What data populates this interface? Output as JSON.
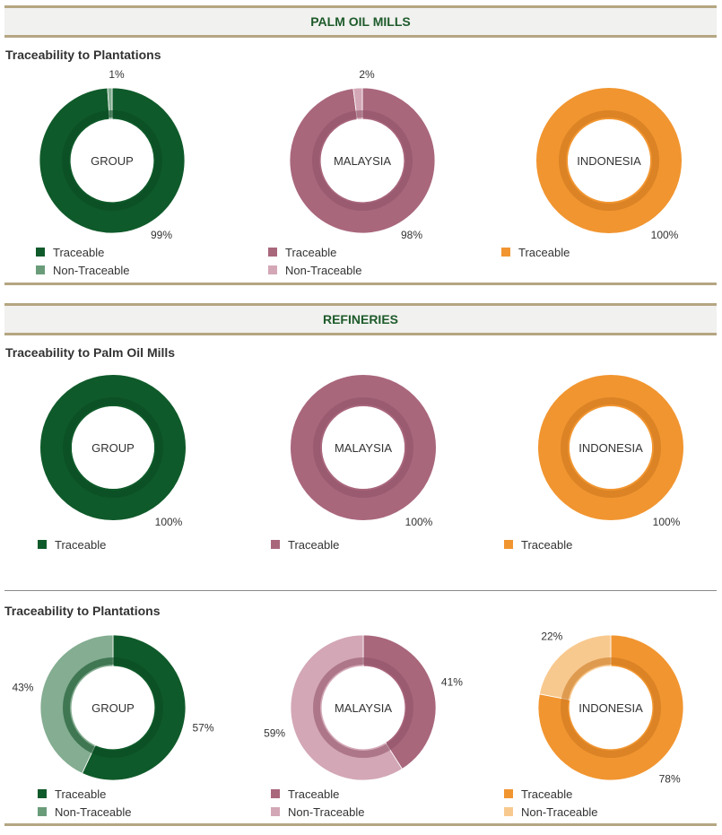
{
  "sections": [
    {
      "title": "PALM OIL MILLS"
    },
    {
      "title": "REFINERIES"
    }
  ],
  "subtitles": [
    "Traceability to Plantations",
    "Traceability to Palm Oil Mills",
    "Traceability to Plantations"
  ],
  "legend_labels": {
    "traceable": "Traceable",
    "non_traceable": "Non-Traceable"
  },
  "colors": {
    "group": {
      "traceable": "#0f5a2a",
      "non_traceable": "#84ad91",
      "ring": "#0a4a20"
    },
    "malaysia": {
      "traceable": "#a9677c",
      "non_traceable": "#d3a7b6",
      "ring": "#8e5065"
    },
    "indonesia": {
      "traceable": "#f19530",
      "non_traceable": "#f8c98f",
      "ring": "#c8751d"
    }
  },
  "chart_data": [
    {
      "type": "pie",
      "section": "PALM OIL MILLS",
      "title": "Traceability to Plantations",
      "charts": [
        {
          "center_label": "GROUP",
          "slices": [
            {
              "label": "Traceable",
              "value": 99,
              "text": "99%"
            },
            {
              "label": "Non-Traceable",
              "value": 1,
              "text": "1%"
            }
          ]
        },
        {
          "center_label": "MALAYSIA",
          "slices": [
            {
              "label": "Traceable",
              "value": 98,
              "text": "98%"
            },
            {
              "label": "Non-Traceable",
              "value": 2,
              "text": "2%"
            }
          ]
        },
        {
          "center_label": "INDONESIA",
          "slices": [
            {
              "label": "Traceable",
              "value": 100,
              "text": "100%"
            }
          ]
        }
      ]
    },
    {
      "type": "pie",
      "section": "REFINERIES",
      "title": "Traceability to Palm Oil Mills",
      "charts": [
        {
          "center_label": "GROUP",
          "slices": [
            {
              "label": "Traceable",
              "value": 100,
              "text": "100%"
            }
          ]
        },
        {
          "center_label": "MALAYSIA",
          "slices": [
            {
              "label": "Traceable",
              "value": 100,
              "text": "100%"
            }
          ]
        },
        {
          "center_label": "INDONESIA",
          "slices": [
            {
              "label": "Traceable",
              "value": 100,
              "text": "100%"
            }
          ]
        }
      ]
    },
    {
      "type": "pie",
      "section": "REFINERIES",
      "title": "Traceability to Plantations",
      "charts": [
        {
          "center_label": "GROUP",
          "slices": [
            {
              "label": "Traceable",
              "value": 57,
              "text": "57%"
            },
            {
              "label": "Non-Traceable",
              "value": 43,
              "text": "43%"
            }
          ]
        },
        {
          "center_label": "MALAYSIA",
          "slices": [
            {
              "label": "Traceable",
              "value": 41,
              "text": "41%"
            },
            {
              "label": "Non-Traceable",
              "value": 59,
              "text": "59%"
            }
          ]
        },
        {
          "center_label": "INDONESIA",
          "slices": [
            {
              "label": "Traceable",
              "value": 78,
              "text": "78%"
            },
            {
              "label": "Non-Traceable",
              "value": 22,
              "text": "22%"
            }
          ]
        }
      ]
    }
  ]
}
